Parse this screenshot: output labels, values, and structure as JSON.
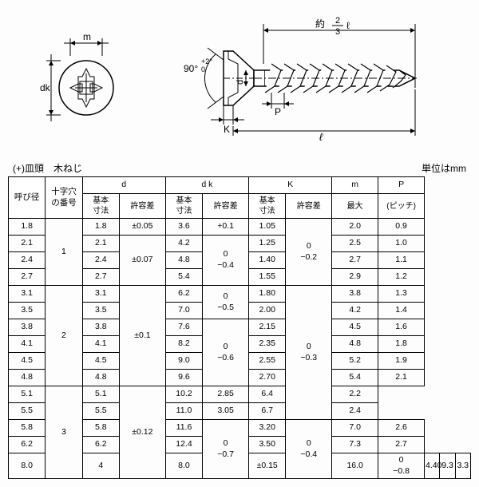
{
  "diagram": {
    "labels": {
      "m": "m",
      "dk": "dk",
      "angle": "90°",
      "angle_tol_top": "+2°",
      "angle_tol_bot": "0",
      "d": "d",
      "K": "K",
      "P": "P",
      "l": "ℓ",
      "approx": "約",
      "frac_top": "2",
      "frac_bot": "3",
      "frac_l": "ℓ"
    },
    "colors": {
      "line": "#000000",
      "fill": "#ffffff"
    }
  },
  "table": {
    "title_left": "(+)皿頭　木ねじ",
    "title_right": "単位はmm",
    "headers": {
      "h1": "呼び径",
      "h2_l1": "十字穴",
      "h2_l2": "の番号",
      "g_d": "d",
      "g_dk": "d k",
      "g_K": "K",
      "g_m": "m",
      "g_P": "P",
      "sub_base": "基本",
      "sub_dim": "寸法",
      "sub_tol": "許容差",
      "sub_max": "最大",
      "sub_pitch": "(ピッチ)"
    },
    "rows": [
      {
        "yobi": "1.8",
        "cross": "1",
        "cross_span": 4,
        "d": "1.8",
        "d_tol": "±0.05",
        "d_tol_span": 1,
        "dk": "3.6",
        "dk_tol": "+0.1",
        "dk_tol_span": 1,
        "K": "1.05",
        "K_tol_span": 4,
        "K_tol_l1": "0",
        "K_tol_l2": "−0.2",
        "m": "2.0",
        "P": "0.9"
      },
      {
        "yobi": "2.1",
        "d": "2.1",
        "d_tol": "±0.07",
        "d_tol_span": 3,
        "dk": "4.2",
        "dk_tol_span": 3,
        "dk_tol_l1": "0",
        "dk_tol_l2": "−0.4",
        "K": "1.25",
        "m": "2.5",
        "P": "1.0"
      },
      {
        "yobi": "2.4",
        "d": "2.4",
        "dk": "4.8",
        "K": "1.40",
        "m": "2.7",
        "P": "1.1"
      },
      {
        "yobi": "2.7",
        "d": "2.7",
        "dk": "5.4",
        "K": "1.55",
        "m": "2.9",
        "P": "1.2"
      },
      {
        "yobi": "3.1",
        "cross": "2",
        "cross_span": 6,
        "d": "3.1",
        "d_tol": "±0.1",
        "d_tol_span": 6,
        "dk": "6.2",
        "dk_tol_span": 2,
        "dk_tol_l1": "0",
        "dk_tol_l2": "−0.5",
        "K": "1.80",
        "K_tol_span": 8,
        "K_tol_l1": "0",
        "K_tol_l2": "−0.3",
        "m": "3.8",
        "P": "1.3"
      },
      {
        "yobi": "3.5",
        "d": "3.5",
        "dk": "7.0",
        "K": "2.00",
        "m": "4.2",
        "P": "1.4"
      },
      {
        "yobi": "3.8",
        "d": "3.8",
        "dk": "7.6",
        "dk_tol_span": 4,
        "dk_tol_l1": "0",
        "dk_tol_l2": "−0.6",
        "K": "2.15",
        "m": "4.5",
        "P": "1.6"
      },
      {
        "yobi": "4.1",
        "d": "4.1",
        "dk": "8.2",
        "K": "2.35",
        "m": "4.8",
        "P": "1.8"
      },
      {
        "yobi": "4.5",
        "d": "4.5",
        "dk": "9.0",
        "K": "2.55",
        "m": "5.2",
        "P": "1.9"
      },
      {
        "yobi": "4.8",
        "d": "4.8",
        "dk": "9.6",
        "K": "2.70",
        "m": "5.4",
        "P": "2.1"
      },
      {
        "yobi": "5.1",
        "cross": "3",
        "cross_span": 5,
        "d": "5.1",
        "d_tol": "±0.12",
        "d_tol_span": 5,
        "dk": "10.2",
        "K": "2.85",
        "m": "6.4",
        "P": "2.2"
      },
      {
        "yobi": "5.5",
        "d": "5.5",
        "dk": "11.0",
        "K": "3.05",
        "m": "6.7",
        "P": "2.4"
      },
      {
        "yobi": "5.8",
        "d": "5.8",
        "dk": "11.6",
        "dk_tol_span": 3,
        "dk_tol_l1": "0",
        "dk_tol_l2": "−0.7",
        "K": "3.20",
        "K_tol_span": 4,
        "K_tol_l1": "0",
        "K_tol_l2": "−0.4",
        "m": "7.0",
        "P": "2.6"
      },
      {
        "yobi": "6.2",
        "d": "6.2",
        "dk": "12.4",
        "K": "3.50",
        "m": "7.3",
        "P": "2.7"
      },
      {
        "yobi": "8.0",
        "cross": "4",
        "cross_span": 1,
        "d": "8.0",
        "d_tol": "±0.15",
        "d_tol_span": 1,
        "dk": "16.0",
        "dk_tol_span": 1,
        "dk_tol_l1": "0",
        "dk_tol_l2": "−0.8",
        "K": "4.40",
        "m": "9.3",
        "P": "3.3"
      }
    ]
  }
}
